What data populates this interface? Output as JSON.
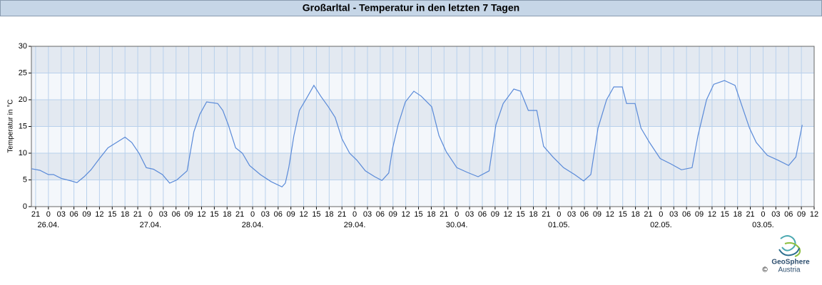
{
  "chart_data": {
    "type": "line",
    "title": "Großarltal - Temperatur in den letzten 7 Tagen",
    "y_label": "Temperatur in °C",
    "color": "#5a8ad8",
    "grid": true,
    "xlim": [
      -4,
      180
    ],
    "ylim": [
      0,
      30
    ],
    "yticks": [
      0,
      5,
      10,
      15,
      20,
      25,
      30
    ],
    "xticks": [
      {
        "value": -3,
        "label": "21"
      },
      {
        "value": 0,
        "label": "0"
      },
      {
        "value": 3,
        "label": "03"
      },
      {
        "value": 6,
        "label": "06"
      },
      {
        "value": 9,
        "label": "09"
      },
      {
        "value": 12,
        "label": "12"
      },
      {
        "value": 15,
        "label": "15"
      },
      {
        "value": 18,
        "label": "18"
      },
      {
        "value": 21,
        "label": "21"
      },
      {
        "value": 24,
        "label": "0"
      },
      {
        "value": 27,
        "label": "03"
      },
      {
        "value": 30,
        "label": "06"
      },
      {
        "value": 33,
        "label": "09"
      },
      {
        "value": 36,
        "label": "12"
      },
      {
        "value": 39,
        "label": "15"
      },
      {
        "value": 42,
        "label": "18"
      },
      {
        "value": 45,
        "label": "21"
      },
      {
        "value": 48,
        "label": "0"
      },
      {
        "value": 51,
        "label": "03"
      },
      {
        "value": 54,
        "label": "06"
      },
      {
        "value": 57,
        "label": "09"
      },
      {
        "value": 60,
        "label": "12"
      },
      {
        "value": 63,
        "label": "15"
      },
      {
        "value": 66,
        "label": "18"
      },
      {
        "value": 69,
        "label": "21"
      },
      {
        "value": 72,
        "label": "0"
      },
      {
        "value": 75,
        "label": "03"
      },
      {
        "value": 78,
        "label": "06"
      },
      {
        "value": 81,
        "label": "09"
      },
      {
        "value": 84,
        "label": "12"
      },
      {
        "value": 87,
        "label": "15"
      },
      {
        "value": 90,
        "label": "18"
      },
      {
        "value": 93,
        "label": "21"
      },
      {
        "value": 96,
        "label": "0"
      },
      {
        "value": 99,
        "label": "03"
      },
      {
        "value": 102,
        "label": "06"
      },
      {
        "value": 105,
        "label": "09"
      },
      {
        "value": 108,
        "label": "12"
      },
      {
        "value": 111,
        "label": "15"
      },
      {
        "value": 114,
        "label": "18"
      },
      {
        "value": 117,
        "label": "21"
      },
      {
        "value": 120,
        "label": "0"
      },
      {
        "value": 123,
        "label": "03"
      },
      {
        "value": 126,
        "label": "06"
      },
      {
        "value": 129,
        "label": "09"
      },
      {
        "value": 132,
        "label": "12"
      },
      {
        "value": 135,
        "label": "15"
      },
      {
        "value": 138,
        "label": "18"
      },
      {
        "value": 141,
        "label": "21"
      },
      {
        "value": 144,
        "label": "0"
      },
      {
        "value": 147,
        "label": "03"
      },
      {
        "value": 150,
        "label": "06"
      },
      {
        "value": 153,
        "label": "09"
      },
      {
        "value": 156,
        "label": "12"
      },
      {
        "value": 159,
        "label": "15"
      },
      {
        "value": 162,
        "label": "18"
      },
      {
        "value": 165,
        "label": "21"
      },
      {
        "value": 168,
        "label": "0"
      },
      {
        "value": 171,
        "label": "03"
      },
      {
        "value": 174,
        "label": "06"
      },
      {
        "value": 177,
        "label": "09"
      },
      {
        "value": 180,
        "label": "12"
      }
    ],
    "date_labels": [
      {
        "value": 0,
        "label": "26.04."
      },
      {
        "value": 24,
        "label": "27.04."
      },
      {
        "value": 48,
        "label": "28.04."
      },
      {
        "value": 72,
        "label": "29.04."
      },
      {
        "value": 96,
        "label": "30.04."
      },
      {
        "value": 120,
        "label": "01.05."
      },
      {
        "value": 144,
        "label": "02.05."
      },
      {
        "value": 168,
        "label": "03.05."
      }
    ],
    "x": [
      -4,
      -2,
      0,
      1.2,
      3,
      5.4,
      6.7,
      8.4,
      10,
      12,
      14,
      16,
      18,
      19.6,
      21.3,
      23,
      24.7,
      26.8,
      28.5,
      30.2,
      32.6,
      34.2,
      35.6,
      37.2,
      39.8,
      41,
      42.3,
      44,
      45.6,
      47.3,
      49.8,
      52.3,
      54.9,
      55.7,
      56.5,
      57.7,
      59,
      60.7,
      62.4,
      64,
      65.8,
      67.4,
      69,
      70.8,
      72.5,
      74.5,
      76.7,
      78.4,
      80,
      80.9,
      82.2,
      83.9,
      85.9,
      87.6,
      90.1,
      91.8,
      93.5,
      96,
      98.5,
      101,
      103.6,
      105.2,
      106.9,
      109.4,
      111,
      112.8,
      114.8,
      116.4,
      118.6,
      121.1,
      123.7,
      125.8,
      127.5,
      129.2,
      131.2,
      132.9,
      134.9,
      135.9,
      137.9,
      139.3,
      141.3,
      143.8,
      146.3,
      148.8,
      151.3,
      152.7,
      154.7,
      156.4,
      158.9,
      161.4,
      163.1,
      164.8,
      166.4,
      169,
      171.5,
      174,
      175.7,
      177.2
    ],
    "values": [
      7.1,
      6.8,
      6.0,
      6.0,
      5.3,
      4.8,
      4.5,
      5.6,
      6.9,
      9,
      11,
      12,
      13,
      12,
      10,
      7.3,
      7,
      6,
      4.4,
      5,
      6.7,
      14,
      17.3,
      19.6,
      19.3,
      18,
      15.3,
      11,
      10,
      7.7,
      6,
      4.7,
      3.7,
      4.4,
      7.3,
      13.3,
      18,
      20.3,
      22.7,
      20.7,
      18.7,
      16.7,
      12.7,
      10,
      8.7,
      6.7,
      5.6,
      4.9,
      6.3,
      10.9,
      15.3,
      19.6,
      21.6,
      20.7,
      18.7,
      13.3,
      10.3,
      7.3,
      6.4,
      5.6,
      6.7,
      15.3,
      19.3,
      22,
      21.6,
      18,
      18,
      11.3,
      9.3,
      7.3,
      6,
      4.8,
      6,
      14.7,
      20,
      22.4,
      22.4,
      19.3,
      19.3,
      14.7,
      12,
      9,
      8,
      6.9,
      7.3,
      13.3,
      20,
      22.9,
      23.6,
      22.7,
      18.7,
      14.7,
      12,
      9.6,
      8.7,
      7.7,
      9.3,
      15.3
    ]
  },
  "logo": {
    "name": "GeoSphere",
    "subtitle": "Austria",
    "copyright": "©"
  }
}
